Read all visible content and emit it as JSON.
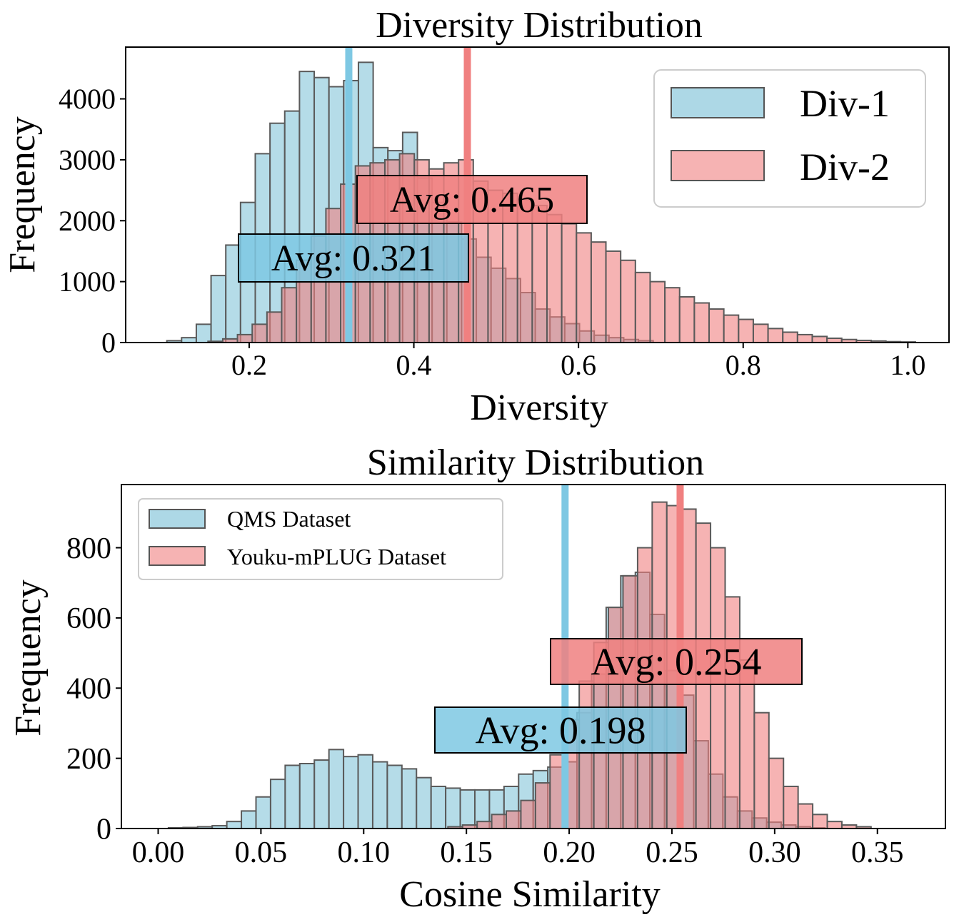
{
  "chart_data": [
    {
      "type": "bar",
      "title": "Diversity Distribution",
      "xlabel": "Diversity",
      "ylabel": "Frequency",
      "xlim": [
        0.05,
        1.05
      ],
      "ylim": [
        0,
        4850
      ],
      "xticks": [
        "0.2",
        "0.4",
        "0.6",
        "0.8",
        "1.0"
      ],
      "xtick_values": [
        0.2,
        0.4,
        0.6,
        0.8,
        1.0
      ],
      "yticks": [
        "0",
        "1000",
        "2000",
        "3000",
        "4000"
      ],
      "ytick_values": [
        0,
        1000,
        2000,
        3000,
        4000
      ],
      "grid": false,
      "legend_position": "top-right",
      "series": [
        {
          "name": "Div-1",
          "color": "#add8e6",
          "bin_start": 0.1,
          "bin_width": 0.0179,
          "values": [
            30,
            80,
            300,
            1100,
            1600,
            2300,
            3100,
            3600,
            3800,
            4450,
            4350,
            4200,
            4300,
            4600,
            3200,
            3150,
            3450,
            2700,
            2300,
            1980,
            1700,
            1400,
            1220,
            1050,
            820,
            550,
            420,
            310,
            190,
            120,
            80,
            50,
            30
          ]
        },
        {
          "name": "Div-2",
          "color": "#f08080",
          "bin_start": 0.15,
          "bin_width": 0.0179,
          "values": [
            20,
            60,
            130,
            300,
            500,
            900,
            1350,
            1750,
            2200,
            2600,
            2900,
            2950,
            3000,
            3100,
            3000,
            2850,
            2950,
            3000,
            2650,
            2500,
            2450,
            2350,
            2250,
            2100,
            1950,
            1800,
            1650,
            1500,
            1350,
            1150,
            1000,
            900,
            750,
            650,
            550,
            450,
            380,
            300,
            230,
            170,
            130,
            100,
            70,
            50,
            35,
            25,
            15,
            10
          ]
        }
      ],
      "averages": [
        {
          "label": "Avg: 0.321",
          "value": 0.321,
          "color": "#7ec8e3"
        },
        {
          "label": "Avg: 0.465",
          "value": 0.465,
          "color": "#f08080"
        }
      ]
    },
    {
      "type": "bar",
      "title": "Similarity Distribution",
      "xlabel": "Cosine Similarity",
      "ylabel": "Frequency",
      "xlim": [
        -0.0179,
        0.3831
      ],
      "ylim": [
        0,
        980
      ],
      "xticks": [
        "0.00",
        "0.05",
        "0.10",
        "0.15",
        "0.20",
        "0.25",
        "0.30",
        "0.35"
      ],
      "xtick_values": [
        0,
        0.05,
        0.1,
        0.15,
        0.2,
        0.25,
        0.3,
        0.35
      ],
      "yticks": [
        "0",
        "200",
        "400",
        "600",
        "800"
      ],
      "ytick_values": [
        0,
        200,
        400,
        600,
        800
      ],
      "grid": false,
      "legend_position": "top-left",
      "series": [
        {
          "name": "QMS Dataset",
          "color": "#add8e6",
          "bin_start": 0.005,
          "bin_width": 0.0071,
          "values": [
            2,
            3,
            5,
            8,
            20,
            50,
            90,
            140,
            180,
            185,
            195,
            225,
            205,
            210,
            190,
            180,
            170,
            145,
            120,
            115,
            110,
            110,
            110,
            120,
            155,
            165,
            175,
            190,
            330,
            440,
            630,
            720,
            730,
            610,
            450,
            380,
            250,
            155,
            90,
            50,
            30,
            18,
            10,
            5,
            2
          ]
        },
        {
          "name": "Youku-mPLUG Dataset",
          "color": "#f08080",
          "bin_start": 0.141,
          "bin_width": 0.0071,
          "values": [
            5,
            10,
            20,
            40,
            50,
            80,
            130,
            210,
            310,
            420,
            530,
            630,
            720,
            800,
            930,
            920,
            910,
            870,
            800,
            660,
            480,
            330,
            200,
            120,
            70,
            40,
            20,
            10,
            5
          ]
        }
      ],
      "averages": [
        {
          "label": "Avg: 0.198",
          "value": 0.198,
          "color": "#7ec8e3"
        },
        {
          "label": "Avg: 0.254",
          "value": 0.254,
          "color": "#f08080"
        }
      ]
    }
  ]
}
